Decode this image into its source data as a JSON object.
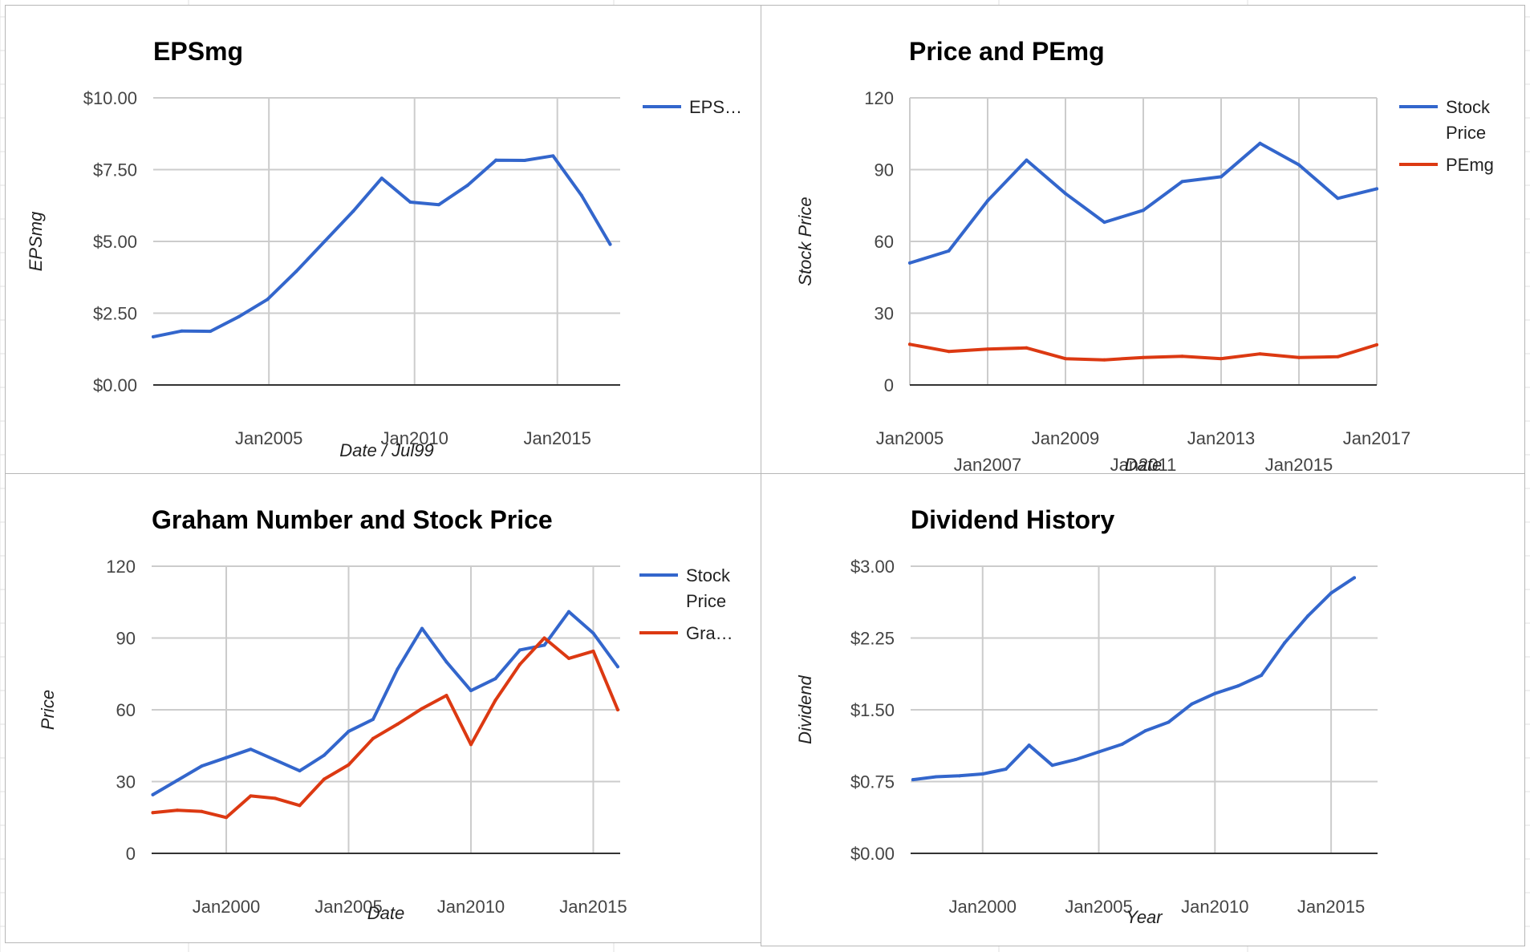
{
  "colors": {
    "blue": "#3366cc",
    "red": "#dc3912"
  },
  "chart_data": [
    {
      "id": "epsmg",
      "type": "line",
      "title": "EPSmg",
      "xlabel": "Date / Jul99",
      "ylabel": "EPSmg",
      "xlim": [
        2000.75,
        2017.1
      ],
      "ylim": [
        0,
        10
      ],
      "y_ticks": [
        {
          "value": 0,
          "label": "$0.00"
        },
        {
          "value": 2.5,
          "label": "$2.50"
        },
        {
          "value": 5,
          "label": "$5.00"
        },
        {
          "value": 7.5,
          "label": "$7.50"
        },
        {
          "value": 10,
          "label": "$10.00"
        }
      ],
      "x_ticks": [
        {
          "value": 2004.8,
          "label": "Jan2005"
        },
        {
          "value": 2009.9,
          "label": "Jan2010"
        },
        {
          "value": 2014.9,
          "label": "Jan2015"
        }
      ],
      "legend": "right",
      "series": [
        {
          "name": "EPS…",
          "color": "#3366cc",
          "x": [
            2000.75,
            2001.75,
            2002.75,
            2003.75,
            2004.75,
            2005.75,
            2006.75,
            2007.75,
            2008.75,
            2009.75,
            2010.75,
            2011.75,
            2012.75,
            2013.75,
            2014.75,
            2015.75,
            2016.75
          ],
          "y": [
            1.68,
            1.88,
            1.87,
            2.38,
            2.98,
            3.95,
            5.0,
            6.05,
            7.2,
            6.37,
            6.28,
            6.95,
            7.83,
            7.82,
            7.98,
            6.6,
            4.9
          ]
        }
      ]
    },
    {
      "id": "price-pemg",
      "type": "line",
      "title": "Price and PEmg",
      "xlabel": "Date",
      "ylabel": "Stock Price",
      "xlim": [
        2005,
        2017
      ],
      "ylim": [
        0,
        120
      ],
      "y_ticks": [
        {
          "value": 0,
          "label": "0"
        },
        {
          "value": 30,
          "label": "30"
        },
        {
          "value": 60,
          "label": "60"
        },
        {
          "value": 90,
          "label": "90"
        },
        {
          "value": 120,
          "label": "120"
        }
      ],
      "x_ticks": [
        {
          "value": 2005,
          "label": "Jan2005",
          "row": 0
        },
        {
          "value": 2007,
          "label": "Jan2007",
          "row": 1
        },
        {
          "value": 2009,
          "label": "Jan2009",
          "row": 0
        },
        {
          "value": 2011,
          "label": "Jan2011",
          "row": 1
        },
        {
          "value": 2013,
          "label": "Jan2013",
          "row": 0
        },
        {
          "value": 2015,
          "label": "Jan2015",
          "row": 1
        },
        {
          "value": 2017,
          "label": "Jan2017",
          "row": 0
        }
      ],
      "legend": "right",
      "series": [
        {
          "name_lines": [
            "Stock",
            "Price"
          ],
          "color": "#3366cc",
          "x": [
            2005,
            2006,
            2007,
            2008,
            2009,
            2010,
            2011,
            2012,
            2013,
            2014,
            2015,
            2016,
            2017
          ],
          "y": [
            51,
            56,
            77,
            94,
            80,
            68,
            73,
            85,
            87,
            101,
            92,
            78,
            82
          ]
        },
        {
          "name_lines": [
            "PEmg"
          ],
          "color": "#dc3912",
          "x": [
            2005,
            2006,
            2007,
            2008,
            2009,
            2010,
            2011,
            2012,
            2013,
            2014,
            2015,
            2016,
            2017
          ],
          "y": [
            17,
            14,
            15,
            15.5,
            11,
            10.5,
            11.5,
            12,
            11,
            13,
            11.5,
            11.8,
            16.8
          ]
        }
      ]
    },
    {
      "id": "graham",
      "type": "line",
      "title": "Graham Number and Stock Price",
      "xlabel": "Date",
      "ylabel": "Price",
      "xlim": [
        1996.95,
        2016.1
      ],
      "ylim": [
        0,
        120
      ],
      "y_ticks": [
        {
          "value": 0,
          "label": "0"
        },
        {
          "value": 30,
          "label": "30"
        },
        {
          "value": 60,
          "label": "60"
        },
        {
          "value": 90,
          "label": "90"
        },
        {
          "value": 120,
          "label": "120"
        }
      ],
      "x_ticks": [
        {
          "value": 2000,
          "label": "Jan2000"
        },
        {
          "value": 2005,
          "label": "Jan2005"
        },
        {
          "value": 2010,
          "label": "Jan2010"
        },
        {
          "value": 2015,
          "label": "Jan2015"
        }
      ],
      "legend": "right",
      "series": [
        {
          "name_lines": [
            "Stock",
            "Price"
          ],
          "color": "#3366cc",
          "x": [
            1997,
            1998,
            1999,
            2000,
            2001,
            2002,
            2003,
            2004,
            2005,
            2006,
            2007,
            2008,
            2009,
            2010,
            2011,
            2012,
            2013,
            2014,
            2015,
            2016
          ],
          "y": [
            24.5,
            30.5,
            36.5,
            40,
            43.5,
            39,
            34.5,
            41,
            51,
            56,
            77,
            94,
            80,
            68,
            73,
            85,
            87,
            101,
            92,
            78
          ]
        },
        {
          "name_lines": [
            "Gra…"
          ],
          "color": "#dc3912",
          "x": [
            1997,
            1998,
            1999,
            2000,
            2001,
            2002,
            2003,
            2004,
            2005,
            2006,
            2007,
            2008,
            2009,
            2010,
            2011,
            2012,
            2013,
            2014,
            2015,
            2016
          ],
          "y": [
            17,
            18,
            17.5,
            15,
            24,
            23,
            20,
            31,
            37,
            48,
            54,
            60.5,
            66,
            45.5,
            64,
            79,
            90,
            81.5,
            84.5,
            60
          ]
        }
      ]
    },
    {
      "id": "dividend",
      "type": "line",
      "title": "Dividend History",
      "xlabel": "Year",
      "ylabel": "Dividend",
      "xlim": [
        1996.9,
        2017.0
      ],
      "ylim": [
        0,
        3
      ],
      "y_ticks": [
        {
          "value": 0,
          "label": "$0.00"
        },
        {
          "value": 0.75,
          "label": "$0.75"
        },
        {
          "value": 1.5,
          "label": "$1.50"
        },
        {
          "value": 2.25,
          "label": "$2.25"
        },
        {
          "value": 3,
          "label": "$3.00"
        }
      ],
      "x_ticks": [
        {
          "value": 2000,
          "label": "Jan2000"
        },
        {
          "value": 2005,
          "label": "Jan2005"
        },
        {
          "value": 2010,
          "label": "Jan2010"
        },
        {
          "value": 2015,
          "label": "Jan2015"
        }
      ],
      "legend": "none",
      "series": [
        {
          "color": "#3366cc",
          "x": [
            1997,
            1998,
            1999,
            2000,
            2001,
            2002,
            2003,
            2004,
            2005,
            2006,
            2007,
            2008,
            2009,
            2010,
            2011,
            2012,
            2013,
            2014,
            2015,
            2016
          ],
          "y": [
            0.77,
            0.8,
            0.81,
            0.83,
            0.88,
            1.13,
            0.92,
            0.98,
            1.06,
            1.14,
            1.28,
            1.37,
            1.56,
            1.67,
            1.75,
            1.86,
            2.2,
            2.48,
            2.72,
            2.88
          ]
        }
      ]
    }
  ]
}
